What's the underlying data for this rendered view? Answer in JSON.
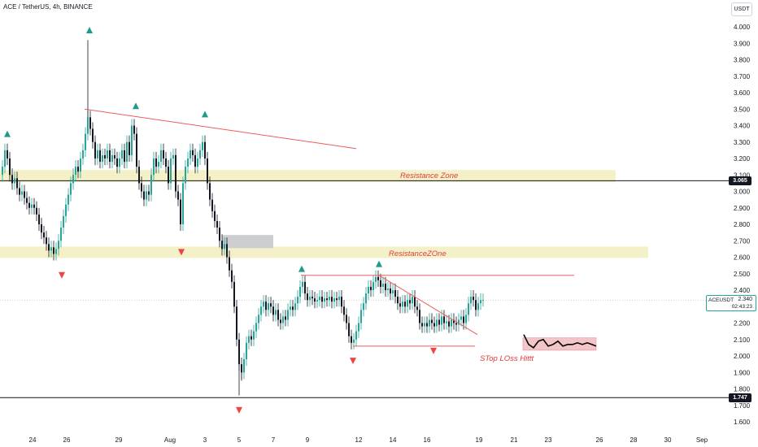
{
  "header": {
    "symbol_title": "ACE / TetherUS, 4h, BINANCE",
    "currency_button": "USDT"
  },
  "price_tags": {
    "resistance_level": "3.065",
    "support_level": "1.747",
    "last_symbol": "ACEUSDT",
    "last_price": "2.340",
    "countdown": "02:43:23"
  },
  "annotations": {
    "resistance_zone_1": "Resistance Zone",
    "resistance_zone_2": "ResistanceZOne",
    "stop_loss": "STop LOss Hittt"
  },
  "colors": {
    "up": "#26a69a",
    "down": "#131722",
    "trendline": "#f05a5a",
    "zone": "#f3f0c6",
    "stop_zone": "#f3c1c6",
    "grey_box": "#c9cbd0",
    "triangle_up": "#1f9a8a",
    "triangle_down": "#ef4444"
  },
  "chart_data": {
    "type": "candlestick",
    "x_tick_labels": [
      "24",
      "26",
      "29",
      "Aug",
      "3",
      "5",
      "7",
      "9",
      "12",
      "14",
      "16",
      "19",
      "21",
      "23",
      "26",
      "28",
      "30",
      "Sep"
    ],
    "y_tick_labels": [
      "4.000",
      "3.900",
      "3.800",
      "3.700",
      "3.600",
      "3.500",
      "3.400",
      "3.300",
      "3.200",
      "3.100",
      "3.000",
      "2.900",
      "2.800",
      "2.700",
      "2.600",
      "2.500",
      "2.400",
      "2.300",
      "2.200",
      "2.100",
      "2.000",
      "1.900",
      "1.800",
      "1.700",
      "1.600"
    ],
    "ylim": [
      1.6,
      4.0
    ],
    "close_path": [
      [
        0,
        3.1
      ],
      [
        3,
        3.15
      ],
      [
        6,
        3.25
      ],
      [
        9,
        3.2
      ],
      [
        12,
        3.1
      ],
      [
        15,
        3.05
      ],
      [
        18,
        3.08
      ],
      [
        21,
        3.02
      ],
      [
        24,
        2.98
      ],
      [
        27,
        3.0
      ],
      [
        30,
        2.96
      ],
      [
        33,
        2.93
      ],
      [
        36,
        2.9
      ],
      [
        39,
        2.92
      ],
      [
        42,
        2.9
      ],
      [
        45,
        2.86
      ],
      [
        48,
        2.8
      ],
      [
        51,
        2.75
      ],
      [
        54,
        2.72
      ],
      [
        57,
        2.68
      ],
      [
        60,
        2.64
      ],
      [
        63,
        2.66
      ],
      [
        66,
        2.62
      ],
      [
        69,
        2.65
      ],
      [
        72,
        2.7
      ],
      [
        75,
        2.78
      ],
      [
        78,
        2.85
      ],
      [
        81,
        2.92
      ],
      [
        84,
        2.98
      ],
      [
        87,
        3.05
      ],
      [
        90,
        3.1
      ],
      [
        93,
        3.15
      ],
      [
        96,
        3.12
      ],
      [
        99,
        3.2
      ],
      [
        102,
        3.25
      ],
      [
        105,
        3.35
      ],
      [
        108,
        3.45
      ],
      [
        111,
        3.38
      ],
      [
        114,
        3.3
      ],
      [
        117,
        3.2
      ],
      [
        120,
        3.25
      ],
      [
        123,
        3.18
      ],
      [
        126,
        3.22
      ],
      [
        129,
        3.2
      ],
      [
        132,
        3.25
      ],
      [
        135,
        3.18
      ],
      [
        138,
        3.22
      ],
      [
        141,
        3.2
      ],
      [
        144,
        3.15
      ],
      [
        147,
        3.2
      ],
      [
        150,
        3.25
      ],
      [
        153,
        3.18
      ],
      [
        156,
        3.3
      ],
      [
        159,
        3.22
      ],
      [
        162,
        3.4
      ],
      [
        165,
        3.35
      ],
      [
        168,
        3.15
      ],
      [
        171,
        3.05
      ],
      [
        174,
        3.0
      ],
      [
        177,
        2.95
      ],
      [
        180,
        3.0
      ],
      [
        183,
        2.98
      ],
      [
        186,
        3.1
      ],
      [
        189,
        3.2
      ],
      [
        192,
        3.15
      ],
      [
        195,
        3.18
      ],
      [
        198,
        3.25
      ],
      [
        201,
        3.2
      ],
      [
        204,
        3.15
      ],
      [
        207,
        3.05
      ],
      [
        210,
        3.2
      ],
      [
        213,
        3.22
      ],
      [
        216,
        3.0
      ],
      [
        219,
        2.95
      ],
      [
        222,
        2.8
      ],
      [
        225,
        3.05
      ],
      [
        228,
        3.15
      ],
      [
        231,
        3.2
      ],
      [
        234,
        3.25
      ],
      [
        237,
        3.22
      ],
      [
        240,
        3.15
      ],
      [
        243,
        3.2
      ],
      [
        246,
        3.25
      ],
      [
        249,
        3.3
      ],
      [
        252,
        3.2
      ],
      [
        255,
        3.05
      ],
      [
        258,
        2.95
      ],
      [
        261,
        2.88
      ],
      [
        264,
        2.82
      ],
      [
        267,
        2.78
      ],
      [
        270,
        2.7
      ],
      [
        273,
        2.65
      ],
      [
        276,
        2.68
      ],
      [
        279,
        2.6
      ],
      [
        282,
        2.52
      ],
      [
        285,
        2.45
      ],
      [
        288,
        2.3
      ],
      [
        291,
        2.1
      ],
      [
        294,
        1.95
      ],
      [
        297,
        1.9
      ],
      [
        300,
        1.98
      ],
      [
        303,
        2.08
      ],
      [
        306,
        2.12
      ],
      [
        309,
        2.1
      ],
      [
        312,
        2.15
      ],
      [
        315,
        2.2
      ],
      [
        318,
        2.25
      ],
      [
        321,
        2.3
      ],
      [
        324,
        2.33
      ],
      [
        327,
        2.28
      ],
      [
        330,
        2.32
      ],
      [
        333,
        2.3
      ],
      [
        336,
        2.25
      ],
      [
        339,
        2.28
      ],
      [
        342,
        2.22
      ],
      [
        345,
        2.2
      ],
      [
        348,
        2.24
      ],
      [
        351,
        2.22
      ],
      [
        354,
        2.28
      ],
      [
        357,
        2.3
      ],
      [
        360,
        2.28
      ],
      [
        363,
        2.32
      ],
      [
        366,
        2.36
      ],
      [
        369,
        2.42
      ],
      [
        372,
        2.45
      ],
      [
        375,
        2.38
      ],
      [
        378,
        2.34
      ],
      [
        381,
        2.36
      ],
      [
        384,
        2.35
      ],
      [
        387,
        2.33
      ],
      [
        390,
        2.34
      ],
      [
        393,
        2.36
      ],
      [
        396,
        2.33
      ],
      [
        399,
        2.35
      ],
      [
        402,
        2.34
      ],
      [
        405,
        2.36
      ],
      [
        408,
        2.33
      ],
      [
        411,
        2.35
      ],
      [
        414,
        2.34
      ],
      [
        417,
        2.36
      ],
      [
        420,
        2.3
      ],
      [
        423,
        2.25
      ],
      [
        426,
        2.2
      ],
      [
        429,
        2.12
      ],
      [
        432,
        2.08
      ],
      [
        435,
        2.1
      ],
      [
        438,
        2.15
      ],
      [
        441,
        2.2
      ],
      [
        444,
        2.28
      ],
      [
        447,
        2.32
      ],
      [
        450,
        2.38
      ],
      [
        453,
        2.42
      ],
      [
        456,
        2.4
      ],
      [
        459,
        2.45
      ],
      [
        462,
        2.48
      ],
      [
        465,
        2.46
      ],
      [
        468,
        2.42
      ],
      [
        471,
        2.44
      ],
      [
        474,
        2.4
      ],
      [
        477,
        2.41
      ],
      [
        480,
        2.38
      ],
      [
        483,
        2.4
      ],
      [
        486,
        2.36
      ],
      [
        489,
        2.32
      ],
      [
        492,
        2.3
      ],
      [
        495,
        2.33
      ],
      [
        498,
        2.3
      ],
      [
        501,
        2.34
      ],
      [
        504,
        2.32
      ],
      [
        507,
        2.36
      ],
      [
        510,
        2.3
      ],
      [
        513,
        2.28
      ],
      [
        516,
        2.2
      ],
      [
        519,
        2.18
      ],
      [
        522,
        2.2
      ],
      [
        525,
        2.18
      ],
      [
        528,
        2.22
      ],
      [
        531,
        2.2
      ],
      [
        534,
        2.18
      ],
      [
        537,
        2.22
      ],
      [
        540,
        2.19
      ],
      [
        543,
        2.24
      ],
      [
        546,
        2.2
      ],
      [
        549,
        2.21
      ],
      [
        552,
        2.18
      ],
      [
        555,
        2.22
      ],
      [
        558,
        2.2
      ],
      [
        561,
        2.19
      ],
      [
        564,
        2.22
      ],
      [
        567,
        2.24
      ],
      [
        570,
        2.2
      ],
      [
        573,
        2.25
      ],
      [
        576,
        2.32
      ],
      [
        579,
        2.36
      ],
      [
        582,
        2.34
      ],
      [
        585,
        2.28
      ],
      [
        588,
        2.32
      ],
      [
        591,
        2.34
      ],
      [
        594,
        2.34
      ]
    ],
    "wick_extremes": [
      [
        108,
        3.92
      ],
      [
        294,
        1.76
      ],
      [
        297,
        1.85
      ]
    ],
    "trendlines": [
      {
        "from": [
          104,
          3.5
        ],
        "to": [
          438,
          3.26
        ]
      },
      {
        "from": [
          370,
          2.49
        ],
        "to": [
          706,
          2.49
        ]
      },
      {
        "from": [
          466,
          2.49
        ],
        "to": [
          587,
          2.13
        ]
      },
      {
        "from": [
          434,
          2.06
        ],
        "to": [
          584,
          2.06
        ]
      }
    ],
    "horizontal_levels": [
      3.065,
      1.747
    ],
    "zones": [
      {
        "label_key": "resistance_zone_1",
        "x0": 0,
        "x1": 757,
        "y0": 3.055,
        "y1": 3.13,
        "kind": "zone"
      },
      {
        "label_key": "resistance_zone_2",
        "x0": 0,
        "x1": 797,
        "y0": 2.595,
        "y1": 2.665,
        "kind": "zone"
      },
      {
        "x0": 273,
        "x1": 336,
        "y0": 2.655,
        "y1": 2.735,
        "kind": "grey"
      },
      {
        "x0": 643,
        "x1": 733,
        "y0": 2.035,
        "y1": 2.11,
        "kind": "stop"
      }
    ],
    "arrows_up": [
      [
        9,
        3.35
      ],
      [
        110,
        3.98
      ],
      [
        167,
        3.52
      ],
      [
        252,
        3.47
      ],
      [
        371,
        2.53
      ],
      [
        466,
        2.56
      ]
    ],
    "arrows_down": [
      [
        76,
        2.49
      ],
      [
        223,
        2.63
      ],
      [
        434,
        1.97
      ],
      [
        533,
        2.03
      ],
      [
        294,
        1.67
      ]
    ],
    "projection_path": [
      [
        644,
        2.13
      ],
      [
        650,
        2.07
      ],
      [
        656,
        2.05
      ],
      [
        662,
        2.09
      ],
      [
        668,
        2.1
      ],
      [
        674,
        2.06
      ],
      [
        680,
        2.07
      ],
      [
        686,
        2.09
      ],
      [
        692,
        2.06
      ],
      [
        698,
        2.07
      ],
      [
        704,
        2.07
      ],
      [
        710,
        2.08
      ],
      [
        716,
        2.07
      ],
      [
        722,
        2.08
      ],
      [
        728,
        2.07
      ],
      [
        733,
        2.06
      ]
    ]
  }
}
